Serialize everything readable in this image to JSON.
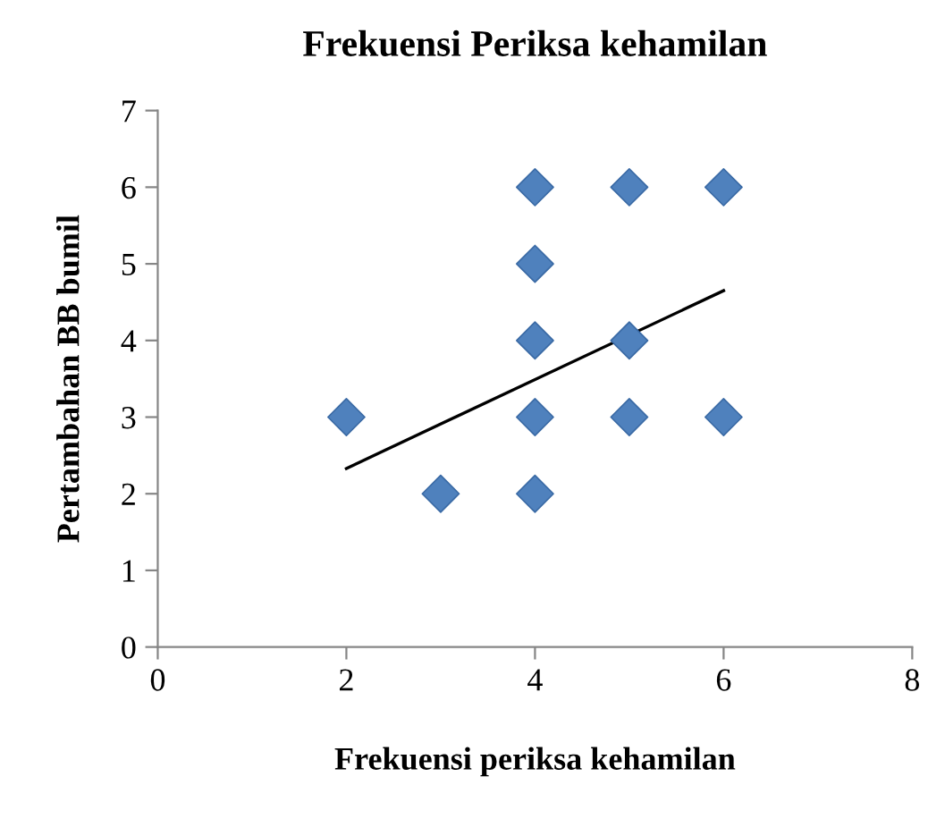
{
  "chart_data": {
    "type": "scatter",
    "title": "Frekuensi Periksa kehamilan",
    "xlabel": "Frekuensi periksa kehamilan",
    "ylabel": "Pertambahan BB bumil",
    "series": [
      {
        "color": "#4f81bd",
        "marker": "diamond",
        "x": [
          2,
          3,
          4,
          4,
          4,
          4,
          4,
          5,
          5,
          5,
          6,
          6
        ],
        "values": [
          3,
          2,
          6,
          5,
          4,
          3,
          2,
          6,
          4,
          3,
          6,
          3
        ]
      },
      {
        "type": "line",
        "color": "#000000",
        "marker": "none",
        "line_style": "solid",
        "x": [
          2,
          6
        ],
        "values": [
          2.33,
          4.65
        ]
      }
    ],
    "xlim": [
      0,
      8
    ],
    "xticks": [
      0,
      2,
      4,
      6,
      8
    ],
    "ylim": [
      0,
      7
    ],
    "yticks": [
      0,
      1,
      2,
      3,
      4,
      5,
      6,
      7
    ],
    "grid": false,
    "legend": false
  }
}
